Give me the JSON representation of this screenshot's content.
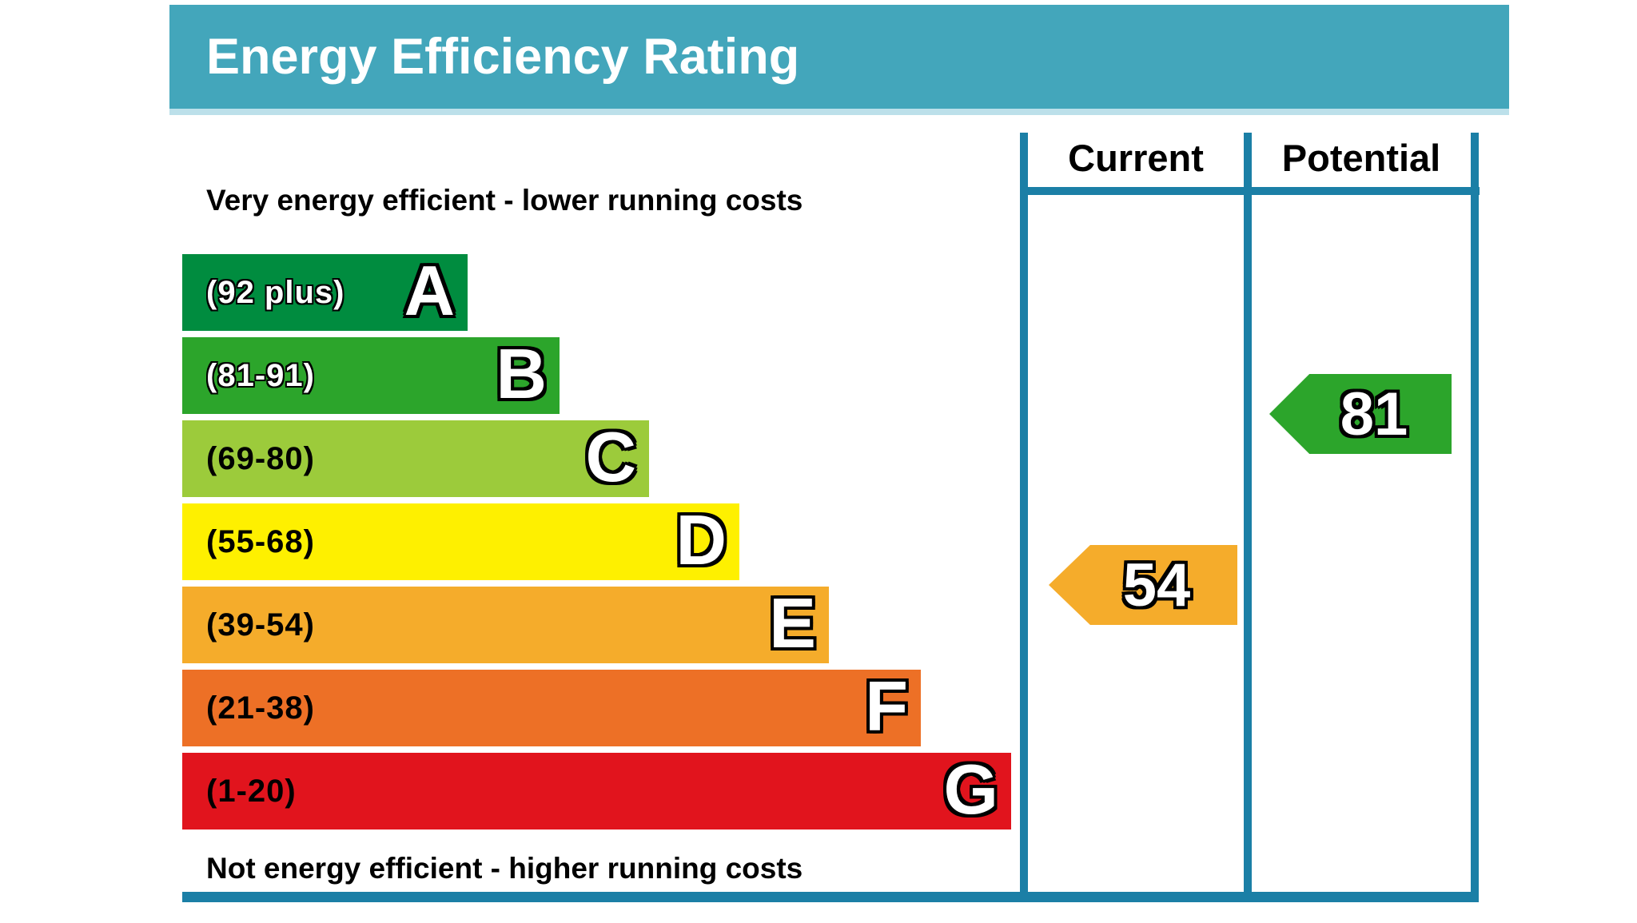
{
  "title": "Energy Efficiency Rating",
  "captions": {
    "top": "Very energy efficient - lower running costs",
    "bottom": "Not energy efficient - higher running costs"
  },
  "column_headers": {
    "current": "Current",
    "potential": "Potential"
  },
  "bands": [
    {
      "letter": "A",
      "range_label": "(92 plus)",
      "range_min": 92,
      "range_max": 100,
      "color": "#008C3F",
      "label_color": "white"
    },
    {
      "letter": "B",
      "range_label": "(81-91)",
      "range_min": 81,
      "range_max": 91,
      "color": "#2CA52B",
      "label_color": "white"
    },
    {
      "letter": "C",
      "range_label": "(69-80)",
      "range_min": 69,
      "range_max": 80,
      "color": "#9CCB3B",
      "label_color": "black"
    },
    {
      "letter": "D",
      "range_label": "(55-68)",
      "range_min": 55,
      "range_max": 68,
      "color": "#FEF000",
      "label_color": "black"
    },
    {
      "letter": "E",
      "range_label": "(39-54)",
      "range_min": 39,
      "range_max": 54,
      "color": "#F5AC2B",
      "label_color": "black"
    },
    {
      "letter": "F",
      "range_label": "(21-38)",
      "range_min": 21,
      "range_max": 38,
      "color": "#ED7026",
      "label_color": "black"
    },
    {
      "letter": "G",
      "range_label": "(1-20)",
      "range_min": 1,
      "range_max": 20,
      "color": "#E1141D",
      "label_color": "black"
    }
  ],
  "ratings": {
    "current": {
      "value": "54",
      "band": "E",
      "color": "#F5AC2B"
    },
    "potential": {
      "value": "81",
      "band": "B",
      "color": "#2CA52B"
    }
  },
  "icons": {
    "rating_pointer": "left-pointing-pentagon-arrow"
  },
  "colors": {
    "header_background": "#43A6BB",
    "header_edge": "#BCE0EA",
    "table_border": "#1B7FA6",
    "title_text": "#FFFFFF",
    "caption_text": "#000000"
  },
  "chart_data": {
    "type": "bar",
    "subtype": "epc-energy-efficiency-rating",
    "title": "Energy Efficiency Rating",
    "categories": [
      "A",
      "B",
      "C",
      "D",
      "E",
      "F",
      "G"
    ],
    "category_ranges": [
      "(92 plus)",
      "(81-91)",
      "(69-80)",
      "(55-68)",
      "(39-54)",
      "(21-38)",
      "(1-20)"
    ],
    "band_colors": [
      "#008C3F",
      "#2CA52B",
      "#9CCB3B",
      "#FEF000",
      "#F5AC2B",
      "#ED7026",
      "#E1141D"
    ],
    "bar_relative_lengths": [
      357,
      472,
      584,
      697,
      809,
      924,
      1037
    ],
    "series": [
      {
        "name": "Current",
        "values": [
          54
        ],
        "band": "E",
        "marker_color": "#F5AC2B"
      },
      {
        "name": "Potential",
        "values": [
          81
        ],
        "band": "B",
        "marker_color": "#2CA52B"
      }
    ],
    "scale_range": [
      1,
      100
    ],
    "annotation_top": "Very energy efficient - lower running costs",
    "annotation_bottom": "Not energy efficient - higher running costs",
    "legend_position": "right-columns",
    "grid": false
  }
}
